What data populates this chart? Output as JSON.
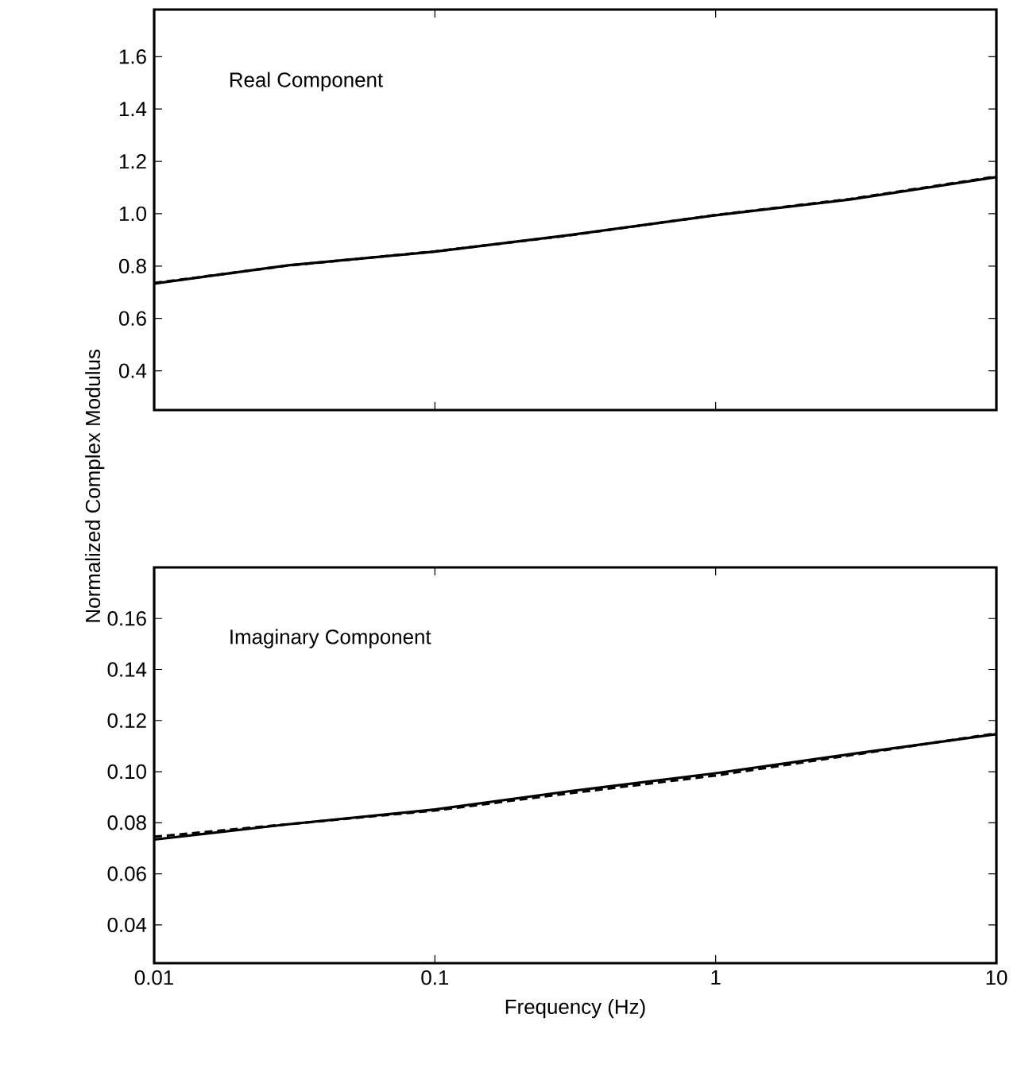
{
  "chart_data": [
    {
      "type": "line",
      "annotations": [
        "Real Component"
      ],
      "ylabel": "Normalized Complex Modulus",
      "log": "x",
      "xlim": [
        0.01,
        10
      ],
      "xticks": [
        0.01,
        0.1,
        1,
        10
      ],
      "ylim": [
        0.25,
        1.78
      ],
      "yticks": [
        0.4,
        0.6,
        0.8,
        {
          "value": 1,
          "label": "1.0"
        },
        1.2,
        1.4,
        1.6
      ],
      "tick_labels": "y",
      "x": [
        0.01,
        0.03,
        0.1,
        0.3,
        1,
        3,
        10
      ],
      "series": [
        {
          "color": "#000000",
          "line_style": "solid",
          "values": [
            0.733,
            0.803,
            0.855,
            0.918,
            0.994,
            1.054,
            1.14
          ]
        },
        {
          "color": "#000000",
          "line_style": "dashed",
          "values": [
            0.735,
            0.802,
            0.856,
            0.917,
            0.995,
            1.056,
            1.142
          ]
        }
      ]
    },
    {
      "type": "line",
      "annotations": [
        "Imaginary Component"
      ],
      "xlabel": "Frequency (Hz)",
      "log": "x",
      "xlim": [
        0.01,
        10
      ],
      "xticks": [
        0.01,
        0.1,
        1,
        10
      ],
      "ylim": [
        0.025,
        0.18
      ],
      "yticks": [
        0.04,
        0.06,
        0.08,
        {
          "value": 0.1,
          "label": "0.10"
        },
        0.12,
        0.14,
        0.16
      ],
      "x": [
        0.01,
        0.03,
        0.1,
        0.3,
        1,
        3,
        10
      ],
      "series": [
        {
          "color": "#000000",
          "line_style": "solid",
          "values": [
            0.0734,
            0.0794,
            0.0852,
            0.0923,
            0.0994,
            0.1068,
            0.1147
          ]
        },
        {
          "color": "#000000",
          "line_style": "dashed",
          "values": [
            0.0745,
            0.0794,
            0.0848,
            0.0915,
            0.0985,
            0.1064,
            0.115
          ]
        }
      ]
    }
  ]
}
